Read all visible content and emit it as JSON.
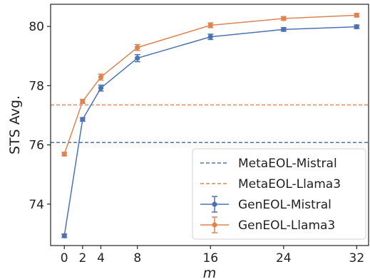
{
  "chart_data": {
    "type": "line",
    "title": "",
    "xlabel": "m",
    "ylabel": "STS Avg.",
    "x_ticks": [
      0,
      2,
      4,
      8,
      16,
      24,
      32
    ],
    "y_ticks": [
      74,
      76,
      78,
      80
    ],
    "xlim": [
      -1.5,
      33.3
    ],
    "ylim": [
      72.6,
      80.75
    ],
    "grid": false,
    "legend_position": "lower-right",
    "series": [
      {
        "name": "GenEOL-Mistral",
        "kind": "errorbar-line",
        "color": "#4c72b0",
        "x": [
          0,
          2,
          4,
          8,
          16,
          24,
          32
        ],
        "y": [
          72.93,
          76.86,
          77.92,
          78.93,
          79.65,
          79.9,
          79.99
        ],
        "err": [
          0.04,
          0.06,
          0.1,
          0.12,
          0.09,
          0.04,
          0.03
        ]
      },
      {
        "name": "GenEOL-Llama3",
        "kind": "errorbar-line",
        "color": "#dd8452",
        "x": [
          0,
          2,
          4,
          8,
          16,
          24,
          32
        ],
        "y": [
          75.69,
          77.47,
          78.29,
          79.29,
          80.04,
          80.27,
          80.38
        ],
        "err": [
          0.04,
          0.07,
          0.1,
          0.1,
          0.08,
          0.04,
          0.04
        ]
      }
    ],
    "reference_lines": [
      {
        "name": "MetaEOL-Mistral",
        "y": 76.08,
        "color": "#4c72b0",
        "style": "dashed"
      },
      {
        "name": "MetaEOL-Llama3",
        "y": 77.35,
        "color": "#dd8452",
        "style": "dashed"
      }
    ],
    "legend": [
      {
        "label": "MetaEOL-Mistral",
        "color": "#4c72b0",
        "style": "dashed"
      },
      {
        "label": "MetaEOL-Llama3",
        "color": "#dd8452",
        "style": "dashed"
      },
      {
        "label": "GenEOL-Mistral",
        "color": "#4c72b0",
        "style": "errorbar"
      },
      {
        "label": "GenEOL-Llama3",
        "color": "#dd8452",
        "style": "errorbar"
      }
    ]
  }
}
